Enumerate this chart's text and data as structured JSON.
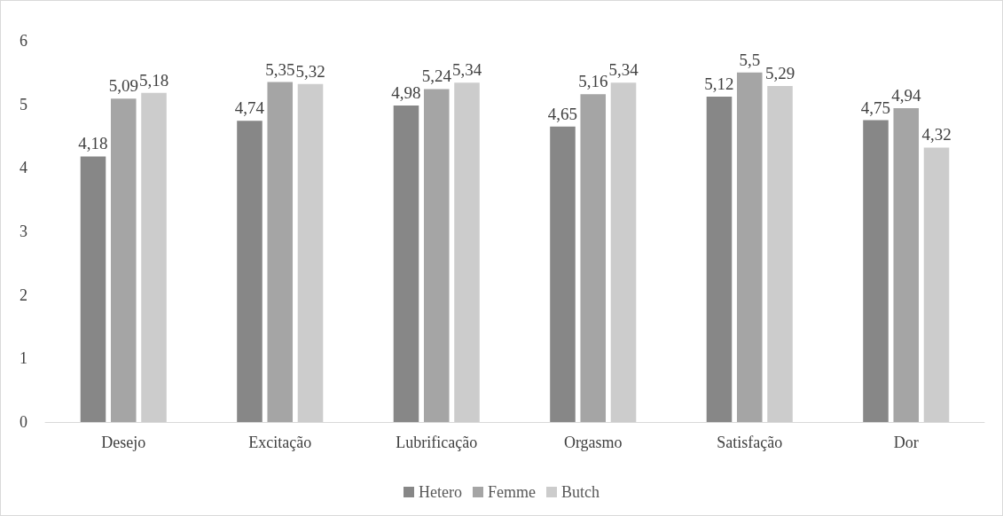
{
  "chart_data": {
    "type": "bar",
    "categories": [
      "Desejo",
      "Excitação",
      "Lubrificação",
      "Orgasmo",
      "Satisfação",
      "Dor"
    ],
    "series": [
      {
        "name": "Hetero",
        "color": "#878787",
        "values": [
          4.18,
          4.74,
          4.98,
          4.65,
          5.12,
          4.75
        ],
        "value_labels": [
          "4,18",
          "4,74",
          "4,98",
          "4,65",
          "5,12",
          "4,75"
        ]
      },
      {
        "name": "Femme",
        "color": "#a5a5a5",
        "values": [
          5.09,
          5.35,
          5.24,
          5.16,
          5.5,
          4.94
        ],
        "value_labels": [
          "5,09",
          "5,35",
          "5,24",
          "5,16",
          "5,5",
          "4,94"
        ]
      },
      {
        "name": "Butch",
        "color": "#cccccc",
        "values": [
          5.18,
          5.32,
          5.34,
          5.34,
          5.29,
          4.32
        ],
        "value_labels": [
          "5,18",
          "5,32",
          "5,34",
          "5,34",
          "5,29",
          "4,32"
        ]
      }
    ],
    "ylim": [
      0,
      6
    ],
    "yticks": [
      0,
      1,
      2,
      3,
      4,
      5,
      6
    ],
    "grid": false,
    "legend": "bottom"
  }
}
